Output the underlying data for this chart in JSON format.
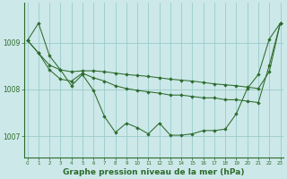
{
  "background_color": "#cce8e8",
  "grid_color": "#99cccc",
  "line_color": "#2d6b2d",
  "marker_color": "#2d6b2d",
  "xlabel": "Graphe pression niveau de la mer (hPa)",
  "xlabel_fontsize": 6.5,
  "xlabel_bold": true,
  "yticks": [
    1007,
    1008,
    1009
  ],
  "xtick_labels": [
    "0",
    "1",
    "2",
    "3",
    "4",
    "5",
    "6",
    "7",
    "8",
    "9",
    "10",
    "11",
    "12",
    "13",
    "14",
    "15",
    "16",
    "17",
    "18",
    "19",
    "20",
    "21",
    "22",
    "23"
  ],
  "xticks": [
    0,
    1,
    2,
    3,
    4,
    5,
    6,
    7,
    8,
    9,
    10,
    11,
    12,
    13,
    14,
    15,
    16,
    17,
    18,
    19,
    20,
    21,
    22,
    23
  ],
  "ylim": [
    1006.55,
    1009.85
  ],
  "xlim": [
    -0.3,
    23.3
  ],
  "series": [
    [
      1009.05,
      1009.42,
      1008.72,
      1008.42,
      1008.08,
      1008.32,
      1007.98,
      1007.42,
      1007.08,
      1007.28,
      1007.18,
      1007.05,
      1007.28,
      1007.02,
      1007.02,
      1007.05,
      1007.12,
      1007.12,
      1007.15,
      1007.48,
      1008.02,
      1008.32,
      1009.08,
      1009.42
    ],
    [
      1009.05,
      1008.78,
      1008.42,
      1008.22,
      1008.18,
      1008.35,
      1008.25,
      1008.18,
      1008.08,
      1008.02,
      1007.98,
      1007.95,
      1007.92,
      1007.88,
      1007.88,
      1007.85,
      1007.82,
      1007.82,
      1007.78,
      1007.78,
      1007.75,
      1007.72,
      1008.52,
      1009.42
    ],
    [
      1009.05,
      1008.78,
      1008.52,
      1008.42,
      1008.38,
      1008.4,
      1008.4,
      1008.38,
      1008.35,
      1008.32,
      1008.3,
      1008.28,
      1008.25,
      1008.22,
      1008.2,
      1008.18,
      1008.15,
      1008.12,
      1008.1,
      1008.08,
      1008.05,
      1008.02,
      1008.38,
      1009.42
    ]
  ]
}
